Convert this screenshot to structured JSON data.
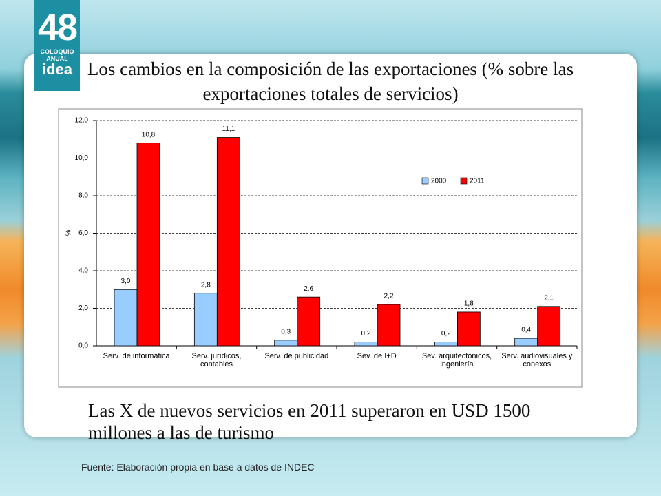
{
  "logo": {
    "number": "48",
    "line1": "COLOQUIO",
    "line2": "ANUAL",
    "line3": "idea"
  },
  "title": "Los cambios en la composición de las exportaciones (% sobre las exportaciones totales de servicios)",
  "summary": "Las X de nuevos servicios en 2011 superaron en USD 1500 millones a las de turismo",
  "source": "Fuente: Elaboración propia en base a datos de INDEC",
  "chart_data": {
    "type": "bar",
    "y_label": "%",
    "categories": [
      "Serv. de informática",
      "Serv. jurídicos, contables",
      "Serv. de publicidad",
      "Sev. de I+D",
      "Sev. arquitectónicos, ingeniería",
      "Serv. audiovisuales y conexos"
    ],
    "series": [
      {
        "name": "2000",
        "color": "#99ccff",
        "values": [
          3.0,
          2.8,
          0.3,
          0.2,
          0.2,
          0.4
        ],
        "value_labels": [
          "3,0",
          "2,8",
          "0,3",
          "0,2",
          "0,2",
          "0,4"
        ]
      },
      {
        "name": "2011",
        "color": "#ff0000",
        "values": [
          10.8,
          11.1,
          2.6,
          2.2,
          1.8,
          2.1
        ],
        "value_labels": [
          "10,8",
          "11,1",
          "2,6",
          "2,2",
          "1,8",
          "2,1"
        ]
      }
    ],
    "ylim": [
      0,
      12
    ],
    "yticks": [
      {
        "value": 0,
        "label": "0,0"
      },
      {
        "value": 2,
        "label": "2,0"
      },
      {
        "value": 4,
        "label": "4,0"
      },
      {
        "value": 6,
        "label": "6,0"
      },
      {
        "value": 8,
        "label": "8,0"
      },
      {
        "value": 10,
        "label": "10,0"
      },
      {
        "value": 12,
        "label": "12,0"
      }
    ],
    "grid": true
  }
}
